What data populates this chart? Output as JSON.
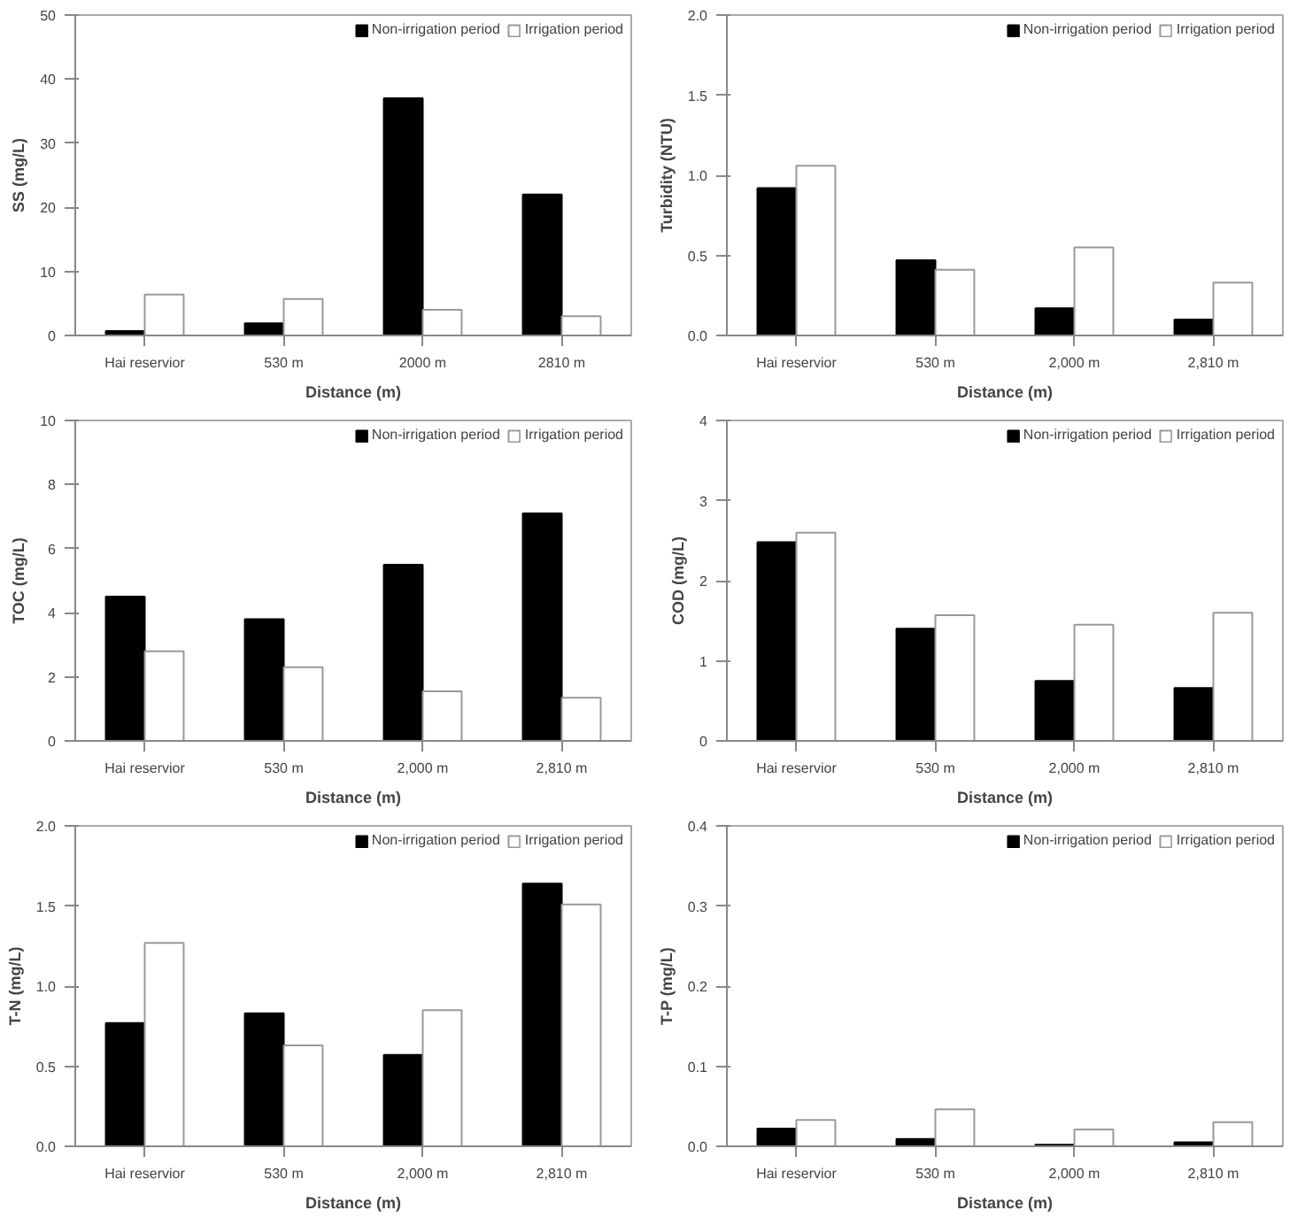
{
  "chart_data": [
    {
      "type": "bar",
      "xlabel": "Distance (m)",
      "ylabel": "SS (mg/L)",
      "categories": [
        "Hai reservior",
        "530 m",
        "2000 m",
        "2810 m"
      ],
      "series": [
        {
          "name": "Non-irrigation period",
          "color": "#000000",
          "values": [
            0.7,
            1.9,
            37,
            22
          ]
        },
        {
          "name": "Irrigation period",
          "color": "#ffffff",
          "values": [
            6.4,
            5.7,
            4.0,
            3.0
          ]
        }
      ],
      "ylim": [
        0,
        50
      ],
      "yticks": [
        0,
        10,
        20,
        30,
        40,
        50
      ],
      "legend": "top right",
      "grid": false
    },
    {
      "type": "bar",
      "xlabel": "Distance (m)",
      "ylabel": "Turbidity (NTU)",
      "categories": [
        "Hai reservior",
        "530 m",
        "2,000 m",
        "2,810 m"
      ],
      "series": [
        {
          "name": "Non-irrigation period",
          "color": "#000000",
          "values": [
            0.92,
            0.47,
            0.17,
            0.1
          ]
        },
        {
          "name": "Irrigation period",
          "color": "#ffffff",
          "values": [
            1.06,
            0.41,
            0.55,
            0.33
          ]
        }
      ],
      "ylim": [
        0,
        2
      ],
      "yticks": [
        {
          "value": 0,
          "label": "0.0"
        },
        0.5,
        {
          "value": 1,
          "label": "1.0"
        },
        1.5,
        {
          "value": 2,
          "label": "2.0"
        }
      ],
      "legend": "top right",
      "grid": false
    },
    {
      "type": "bar",
      "xlabel": "Distance (m)",
      "ylabel": "TOC (mg/L)",
      "categories": [
        "Hai reservior",
        "530 m",
        "2,000 m",
        "2,810 m"
      ],
      "series": [
        {
          "name": "Non-irrigation period",
          "color": "#000000",
          "values": [
            4.5,
            3.8,
            5.5,
            7.1
          ]
        },
        {
          "name": "Irrigation period",
          "color": "#ffffff",
          "values": [
            2.8,
            2.3,
            1.55,
            1.35
          ]
        }
      ],
      "ylim": [
        0,
        10
      ],
      "yticks": [
        0,
        2,
        4,
        6,
        8,
        10
      ],
      "legend": "top right",
      "grid": false
    },
    {
      "type": "bar",
      "xlabel": "Distance (m)",
      "ylabel": "COD (mg/L)",
      "categories": [
        "Hai reservior",
        "530 m",
        "2,000 m",
        "2,810 m"
      ],
      "series": [
        {
          "name": "Non-irrigation period",
          "color": "#000000",
          "values": [
            2.48,
            1.4,
            0.75,
            0.66
          ]
        },
        {
          "name": "Irrigation period",
          "color": "#ffffff",
          "values": [
            2.6,
            1.57,
            1.45,
            1.6
          ]
        }
      ],
      "ylim": [
        0,
        4
      ],
      "yticks": [
        0,
        1,
        2,
        3,
        4
      ],
      "legend": "top right",
      "grid": false
    },
    {
      "type": "bar",
      "xlabel": "Distance (m)",
      "ylabel": "T-N (mg/L)",
      "categories": [
        "Hai reservior",
        "530 m",
        "2,000 m",
        "2,810 m"
      ],
      "series": [
        {
          "name": "Non-irrigation period",
          "color": "#000000",
          "values": [
            0.77,
            0.83,
            0.57,
            1.64
          ]
        },
        {
          "name": "Irrigation period",
          "color": "#ffffff",
          "values": [
            1.27,
            0.63,
            0.85,
            1.51
          ]
        }
      ],
      "ylim": [
        0,
        2
      ],
      "yticks": [
        {
          "value": 0,
          "label": "0.0"
        },
        0.5,
        {
          "value": 1,
          "label": "1.0"
        },
        1.5,
        {
          "value": 2,
          "label": "2.0"
        }
      ],
      "legend": "top right",
      "grid": false
    },
    {
      "type": "bar",
      "xlabel": "Distance (m)",
      "ylabel": "T-P (mg/L)",
      "categories": [
        "Hai reservior",
        "530 m",
        "2,000 m",
        "2,810 m"
      ],
      "series": [
        {
          "name": "Non-irrigation period",
          "color": "#000000",
          "values": [
            0.022,
            0.009,
            0.002,
            0.005
          ]
        },
        {
          "name": "Irrigation period",
          "color": "#ffffff",
          "values": [
            0.033,
            0.046,
            0.021,
            0.03
          ]
        }
      ],
      "ylim": [
        0,
        0.4
      ],
      "yticks": [
        {
          "value": 0,
          "label": "0.0"
        },
        0.1,
        0.2,
        0.3,
        0.4
      ],
      "legend": "top right",
      "grid": false
    }
  ]
}
